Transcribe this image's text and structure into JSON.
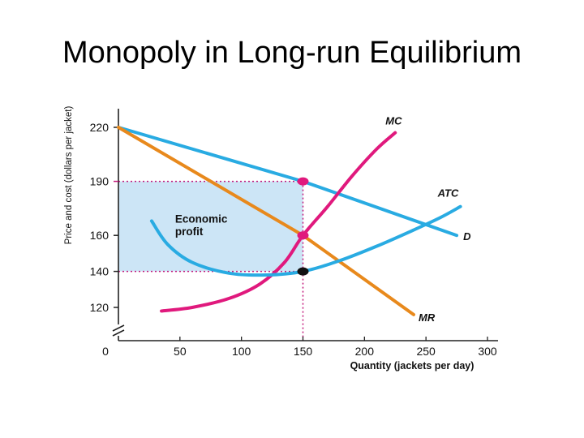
{
  "slide": {
    "title": "Monopoly in Long-run Equilibrium"
  },
  "chart_data": {
    "type": "line",
    "xlabel": "Quantity (jackets per day)",
    "ylabel": "Price and cost (dollars per jacket)",
    "xlim": [
      0,
      300
    ],
    "ylim": [
      120,
      220
    ],
    "x_ticks": [
      0,
      50,
      100,
      150,
      200,
      250,
      300
    ],
    "y_ticks": [
      120,
      140,
      160,
      190,
      220
    ],
    "highlighted_ticks": {
      "x": [
        150
      ],
      "y": [
        190
      ]
    },
    "axis_break": "y",
    "grid": false,
    "series": [
      {
        "name": "D",
        "color": "#29abe2",
        "x": [
          0,
          150,
          275
        ],
        "y": [
          220,
          190,
          160
        ]
      },
      {
        "name": "MR",
        "color": "#e8891c",
        "x": [
          0,
          150,
          240
        ],
        "y": [
          220,
          160,
          116
        ]
      },
      {
        "name": "MC",
        "color": "#e0197d",
        "x": [
          35,
          60,
          90,
          115,
          135,
          150,
          170,
          190,
          210,
          225
        ],
        "y": [
          118,
          120,
          125,
          133,
          145,
          160,
          176,
          193,
          208,
          217
        ]
      },
      {
        "name": "ATC",
        "color": "#29abe2",
        "x": [
          27,
          40,
          60,
          90,
          120,
          150,
          180,
          210,
          240,
          262,
          278
        ],
        "y": [
          168,
          155,
          145,
          139,
          138,
          140,
          146,
          154,
          163,
          170,
          176
        ]
      }
    ],
    "shaded_region": {
      "label": "Economic profit",
      "x": [
        0,
        150
      ],
      "y": [
        140,
        190
      ],
      "color": "#cce5f6"
    },
    "guides": [
      {
        "orientation": "horizontal",
        "value": 190,
        "x_range": [
          0,
          150
        ]
      },
      {
        "orientation": "horizontal",
        "value": 140,
        "x_range": [
          0,
          150
        ]
      },
      {
        "orientation": "vertical",
        "value": 150,
        "y_range": [
          120,
          190
        ]
      }
    ],
    "points": [
      {
        "x": 150,
        "y": 190,
        "color": "#e0197d"
      },
      {
        "x": 150,
        "y": 160,
        "color": "#e0197d"
      },
      {
        "x": 150,
        "y": 140,
        "color": "#111111"
      }
    ],
    "annotations": [
      {
        "text": "Economic",
        "x": 50,
        "y": 167
      },
      {
        "text": "profit",
        "x": 50,
        "y": 160
      }
    ]
  }
}
